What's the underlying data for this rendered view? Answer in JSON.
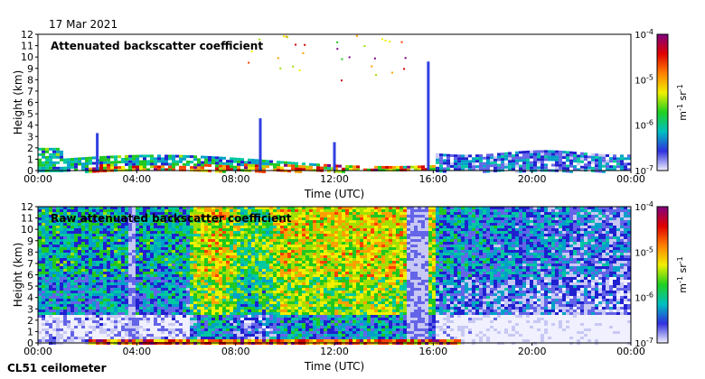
{
  "date": "17 Mar 2021",
  "instrument": "CL51 ceilometer",
  "chart_data": [
    {
      "type": "heatmap",
      "title": "Attenuated backscatter coefficient",
      "xlabel": "Time (UTC)",
      "ylabel": "Height (km)",
      "xlim": [
        0,
        24
      ],
      "ylim": [
        0,
        12
      ],
      "xticks": [
        "00:00",
        "04:00",
        "08:00",
        "12:00",
        "16:00",
        "20:00",
        "00:00"
      ],
      "yticks": [
        "0",
        "1",
        "2",
        "3",
        "4",
        "5",
        "6",
        "7",
        "8",
        "9",
        "10",
        "11",
        "12"
      ],
      "colorbar": {
        "scale": "log",
        "range": [
          1e-07,
          0.0001
        ],
        "ticks": [
          "10-7",
          "10-6",
          "10-5",
          "10-4"
        ],
        "label": "m-1 sr-1",
        "colors": [
          "#f0f0ff",
          "#3030e0",
          "#00c0c0",
          "#20d020",
          "#f0f000",
          "#ff8000",
          "#e00000",
          "#800080"
        ]
      },
      "features": [
        {
          "name": "boundary layer",
          "time_start": 0,
          "time_end": 24,
          "height_top_km": 1.8
        },
        {
          "name": "plume",
          "time_center": 9.0,
          "height_top_km": 4.6
        },
        {
          "name": "plume",
          "time_center": 15.8,
          "height_top_km": 9.6
        }
      ]
    },
    {
      "type": "heatmap",
      "title": "Raw attenuated backscatter coefficient",
      "xlabel": "Time (UTC)",
      "ylabel": "Height (km)",
      "xlim": [
        0,
        24
      ],
      "ylim": [
        0,
        12
      ],
      "xticks": [
        "00:00",
        "04:00",
        "08:00",
        "12:00",
        "16:00",
        "20:00",
        "00:00"
      ],
      "yticks": [
        "0",
        "1",
        "2",
        "3",
        "4",
        "5",
        "6",
        "7",
        "8",
        "9",
        "10",
        "11",
        "12"
      ],
      "colorbar": {
        "scale": "log",
        "range": [
          1e-07,
          0.0001
        ],
        "ticks": [
          "10-7",
          "10-6",
          "10-5",
          "10-4"
        ],
        "label": "m-1 sr-1",
        "colors": [
          "#f0f0ff",
          "#3030e0",
          "#00c0c0",
          "#20d020",
          "#f0f000",
          "#ff8000",
          "#e00000",
          "#800080"
        ]
      }
    }
  ]
}
